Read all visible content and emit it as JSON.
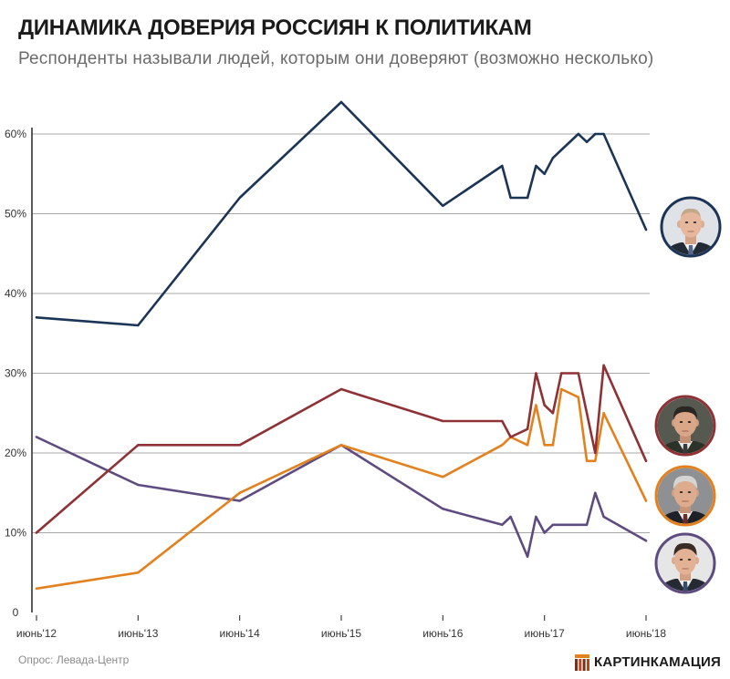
{
  "footer": {
    "source": "Опрос: Левада-Центр",
    "brand": "КАРТИНКАМАЦИЯ",
    "brand_icon": "brand-logo-icon"
  },
  "colors": {
    "background": "#ffffff",
    "gridline": "#a8a8a8",
    "axis": "#333333",
    "title": "#1a1a1a",
    "subtitle": "#6b6b6b"
  },
  "chart_data": {
    "type": "line",
    "title": "ДИНАМИКА ДОВЕРИЯ РОССИЯН К ПОЛИТИКАМ",
    "subtitle": "Респонденты называли людей, которым они доверяют (возможно несколько)",
    "xlabel": "",
    "ylabel": "",
    "x_axis_type": "date",
    "x": [
      "2012-06",
      "2013-06",
      "2014-06",
      "2015-06",
      "2016-06",
      "2017-01",
      "2017-02",
      "2017-04",
      "2017-05",
      "2017-06",
      "2017-07",
      "2017-08",
      "2017-10",
      "2017-11",
      "2017-12",
      "2018-01",
      "2018-06"
    ],
    "xticks": [
      "2012-06",
      "2013-06",
      "2014-06",
      "2015-06",
      "2016-06",
      "2017-06",
      "2018-06"
    ],
    "xtick_labels": [
      "июнь'12",
      "июнь'13",
      "июнь'14",
      "июнь'15",
      "июнь'16",
      "июнь'17",
      "июнь'18"
    ],
    "yticks": [
      0,
      10,
      20,
      30,
      40,
      50,
      60
    ],
    "ytick_labels": [
      "0",
      "10%",
      "20%",
      "30%",
      "40%",
      "50%",
      "60%"
    ],
    "y_unit": "%",
    "ylim": [
      0,
      64
    ],
    "grid": true,
    "legend": "right",
    "series": [
      {
        "color": "#1c3556",
        "legend_marker": "portrait-photo",
        "values": [
          37,
          36,
          52,
          64,
          51,
          56,
          52,
          52,
          56,
          55,
          57,
          58,
          60,
          59,
          60,
          60,
          48
        ]
      },
      {
        "color": "#8e3236",
        "legend_marker": "portrait-photo",
        "values": [
          10,
          21,
          21,
          28,
          24,
          24,
          22,
          23,
          30,
          26,
          25,
          30,
          30,
          25,
          20,
          31,
          19
        ]
      },
      {
        "color": "#e2811e",
        "legend_marker": "portrait-photo",
        "values": [
          3,
          5,
          15,
          21,
          17,
          21,
          22,
          21,
          26,
          21,
          21,
          28,
          27,
          19,
          19,
          25,
          14
        ]
      },
      {
        "color": "#5e4b80",
        "legend_marker": "portrait-photo",
        "values": [
          22,
          16,
          14,
          21,
          13,
          11,
          12,
          7,
          12,
          10,
          11,
          11,
          11,
          11,
          15,
          12,
          9
        ]
      }
    ]
  }
}
